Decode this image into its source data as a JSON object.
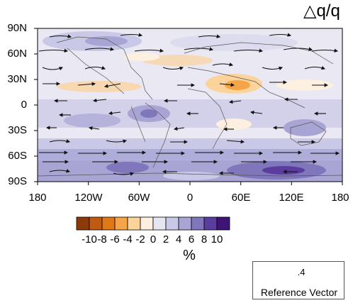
{
  "title": "△q/q",
  "chart_data": {
    "type": "map-vector-contour",
    "title": "△q/q",
    "y_ticks": [
      "90N",
      "60N",
      "30N",
      "0",
      "30S",
      "60S",
      "90S"
    ],
    "x_ticks": [
      "180",
      "120W",
      "60W",
      "0",
      "60E",
      "120E",
      "180"
    ],
    "colorbar": {
      "unit": "%",
      "tick_labels": [
        "-10",
        "-8",
        "-6",
        "-4",
        "-2",
        "0",
        "2",
        "4",
        "6",
        "8",
        "10"
      ],
      "colors": [
        "#8c3a08",
        "#c05a12",
        "#e07818",
        "#f5a548",
        "#fbd39b",
        "#fdf0e0",
        "#e6e6f3",
        "#c9c8e6",
        "#a8a5d4",
        "#7f76bb",
        "#5b3d9e",
        "#3e1476"
      ]
    },
    "reference_vector": {
      "magnitude": ".4",
      "label": "Reference Vector"
    }
  }
}
